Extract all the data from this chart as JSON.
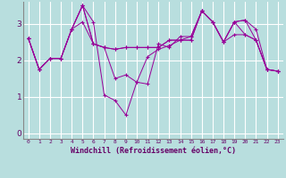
{
  "xlabel": "Windchill (Refroidissement éolien,°C)",
  "background_color": "#b8dede",
  "grid_color": "#ffffff",
  "line_color": "#990099",
  "xlim": [
    -0.5,
    23.5
  ],
  "ylim": [
    -0.15,
    3.6
  ],
  "yticks": [
    0,
    1,
    2,
    3
  ],
  "xticks": [
    0,
    1,
    2,
    3,
    4,
    5,
    6,
    7,
    8,
    9,
    10,
    11,
    12,
    13,
    14,
    15,
    16,
    17,
    18,
    19,
    20,
    21,
    22,
    23
  ],
  "lines": [
    [
      2.6,
      1.75,
      2.05,
      2.05,
      2.85,
      3.5,
      3.05,
      1.05,
      0.9,
      0.5,
      1.4,
      1.35,
      2.45,
      2.35,
      2.65,
      2.65,
      3.35,
      3.05,
      2.5,
      3.05,
      3.1,
      2.85,
      1.75,
      1.7
    ],
    [
      2.6,
      1.75,
      2.05,
      2.05,
      2.85,
      3.5,
      2.45,
      2.35,
      1.5,
      1.6,
      1.4,
      2.1,
      2.3,
      2.4,
      2.55,
      2.65,
      3.35,
      3.05,
      2.5,
      3.05,
      3.1,
      2.55,
      1.75,
      1.7
    ],
    [
      2.6,
      1.75,
      2.05,
      2.05,
      2.85,
      3.5,
      2.45,
      2.35,
      2.3,
      2.35,
      2.35,
      2.35,
      2.35,
      2.55,
      2.55,
      2.55,
      3.35,
      3.05,
      2.5,
      3.05,
      2.7,
      2.55,
      1.75,
      1.7
    ],
    [
      2.6,
      1.75,
      2.05,
      2.05,
      2.85,
      3.05,
      2.45,
      2.35,
      2.3,
      2.35,
      2.35,
      2.35,
      2.35,
      2.55,
      2.55,
      2.55,
      3.35,
      3.05,
      2.5,
      2.7,
      2.7,
      2.55,
      1.75,
      1.7
    ]
  ]
}
